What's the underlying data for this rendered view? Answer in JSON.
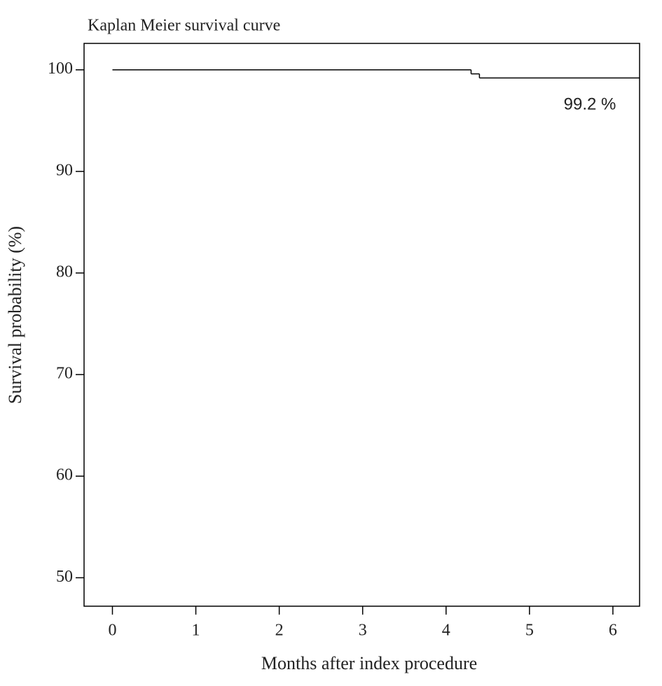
{
  "chart_data": {
    "type": "step",
    "title": "Kaplan Meier survival curve",
    "x_label": "Months after index procedure",
    "y_label": "Survival probability (%)",
    "annotation": "99.2 %",
    "x": [
      0,
      4.3,
      4.4,
      6.32
    ],
    "values": [
      100,
      99.6,
      99.2,
      99.2
    ],
    "color": "#000000",
    "xlim": [
      -0.34,
      6.32
    ],
    "xticks": [
      0,
      1,
      2,
      3,
      4,
      5,
      6
    ],
    "ylim": [
      47.2,
      102.6
    ],
    "yticks": [
      50,
      60,
      70,
      80,
      90,
      100
    ],
    "grid": false
  }
}
